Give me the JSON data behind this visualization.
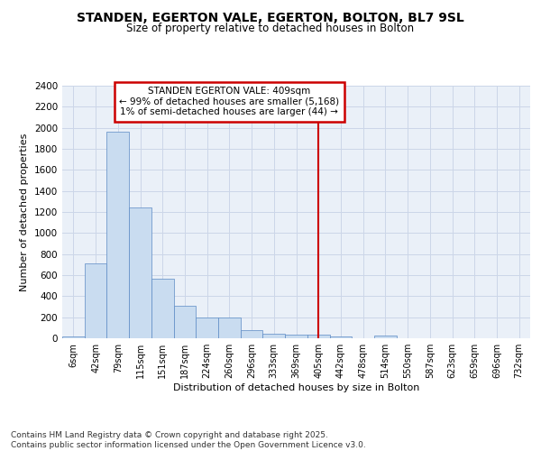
{
  "title1": "STANDEN, EGERTON VALE, EGERTON, BOLTON, BL7 9SL",
  "title2": "Size of property relative to detached houses in Bolton",
  "xlabel": "Distribution of detached houses by size in Bolton",
  "ylabel": "Number of detached properties",
  "categories": [
    "6sqm",
    "42sqm",
    "79sqm",
    "115sqm",
    "151sqm",
    "187sqm",
    "224sqm",
    "260sqm",
    "296sqm",
    "333sqm",
    "369sqm",
    "405sqm",
    "442sqm",
    "478sqm",
    "514sqm",
    "550sqm",
    "587sqm",
    "623sqm",
    "659sqm",
    "696sqm",
    "732sqm"
  ],
  "values": [
    15,
    710,
    1960,
    1240,
    570,
    305,
    200,
    200,
    80,
    45,
    35,
    35,
    15,
    0,
    25,
    0,
    0,
    0,
    0,
    0,
    0
  ],
  "bar_color": "#c9dcf0",
  "bar_edge_color": "#5b8ac5",
  "annotation_text": "STANDEN EGERTON VALE: 409sqm\n← 99% of detached houses are smaller (5,168)\n1% of semi-detached houses are larger (44) →",
  "annotation_box_color": "#ffffff",
  "annotation_box_edge": "#cc0000",
  "vline_color": "#cc0000",
  "grid_color": "#ccd6e8",
  "background_color": "#eaf0f8",
  "footer_text": "Contains HM Land Registry data © Crown copyright and database right 2025.\nContains public sector information licensed under the Open Government Licence v3.0.",
  "ylim": [
    0,
    2400
  ],
  "yticks": [
    0,
    200,
    400,
    600,
    800,
    1000,
    1200,
    1400,
    1600,
    1800,
    2000,
    2200,
    2400
  ],
  "vline_x": 11.0
}
